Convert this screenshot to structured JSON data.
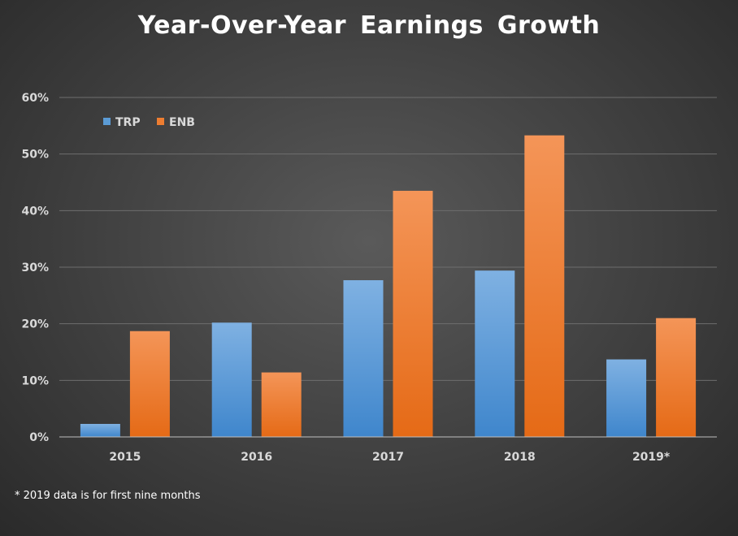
{
  "chart_data": {
    "type": "bar",
    "title": "Year-Over-Year Earnings Growth",
    "categories": [
      "2015",
      "2016",
      "2017",
      "2018",
      "2019*"
    ],
    "series": [
      {
        "name": "TRP",
        "values": [
          2.3,
          20.2,
          27.7,
          29.4,
          13.7
        ],
        "color": "#5b9bd5"
      },
      {
        "name": "ENB",
        "values": [
          18.7,
          11.4,
          43.5,
          53.3,
          21.0
        ],
        "color": "#ed7d31"
      }
    ],
    "ylim": [
      0,
      60
    ],
    "y_ticks": [
      0,
      10,
      20,
      30,
      40,
      50,
      60
    ],
    "y_tick_format": "percent",
    "grid": true,
    "legend_position": "top-left",
    "footnote": "* 2019 data is for first nine months"
  }
}
